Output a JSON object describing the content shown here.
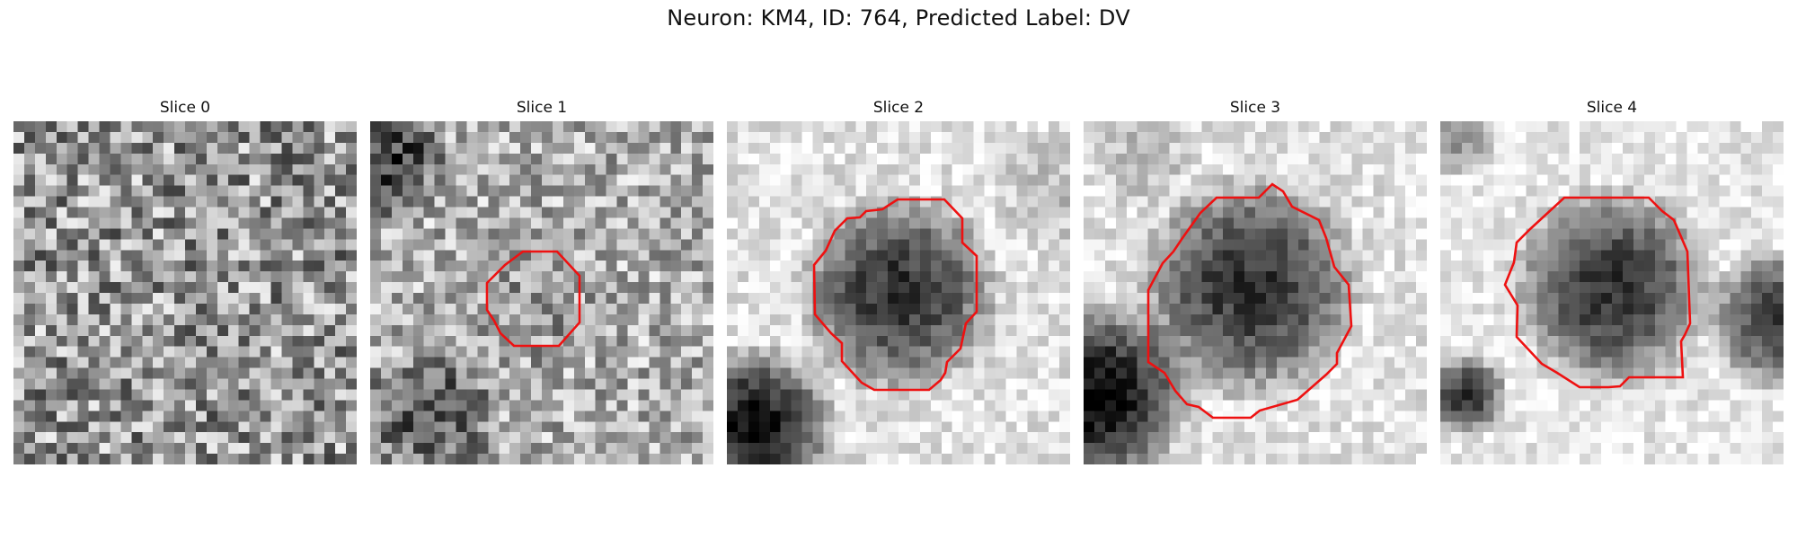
{
  "figure": {
    "title": "Neuron: KM4, ID: 764, Predicted Label: DV"
  },
  "panels": [
    {
      "title": "Slice 0",
      "image": "grayscale-microscopy-patch",
      "has_outline": false,
      "outline_color": "#ee1111"
    },
    {
      "title": "Slice 1",
      "image": "grayscale-microscopy-patch",
      "has_outline": true,
      "outline_color": "#ee1111"
    },
    {
      "title": "Slice 2",
      "image": "grayscale-microscopy-patch",
      "has_outline": true,
      "outline_color": "#ee1111"
    },
    {
      "title": "Slice 3",
      "image": "grayscale-microscopy-patch",
      "has_outline": true,
      "outline_color": "#ee1111"
    },
    {
      "title": "Slice 4",
      "image": "grayscale-microscopy-patch",
      "has_outline": true,
      "outline_color": "#ee1111"
    }
  ]
}
